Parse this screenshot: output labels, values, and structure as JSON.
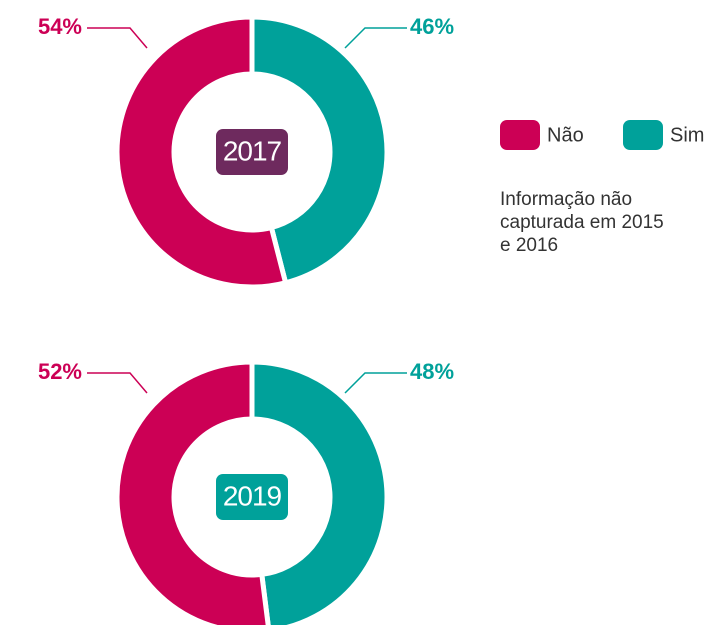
{
  "chart_data": [
    {
      "type": "donut",
      "title": "2017",
      "title_color": "#6e2a5e",
      "categories": [
        "Não",
        "Sim"
      ],
      "values": [
        54,
        46
      ],
      "value_labels": [
        "54%",
        "46%"
      ],
      "colors": [
        "#cc0055",
        "#00a19a"
      ],
      "legend": true,
      "annotation": "Informação não capturada em 2015 e 2016"
    },
    {
      "type": "donut",
      "title": "2019",
      "title_color": "#00a19a",
      "categories": [
        "Não",
        "Sim"
      ],
      "values": [
        52,
        48
      ],
      "value_labels": [
        "52%",
        "48%"
      ],
      "colors": [
        "#cc0055",
        "#00a19a"
      ],
      "legend": false
    }
  ]
}
